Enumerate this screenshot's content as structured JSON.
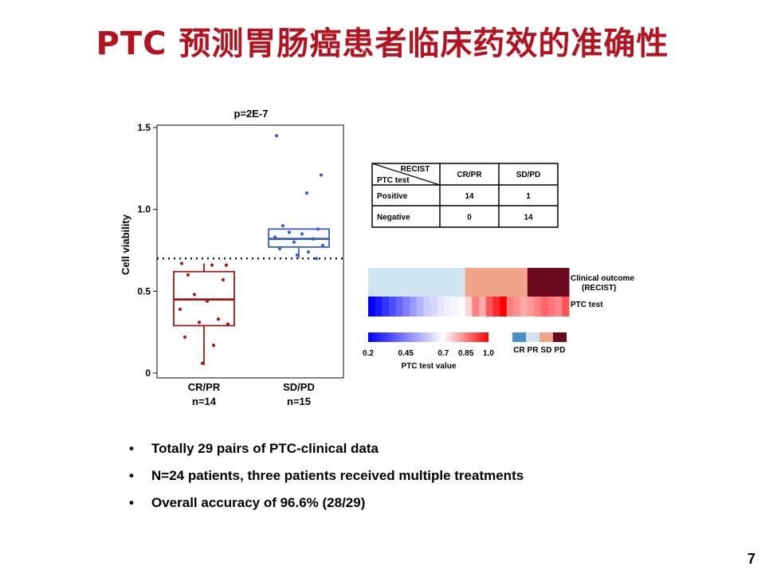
{
  "title": "PTC 预测胃肠癌患者临床药效的准确性",
  "page_number": "7",
  "bullets": [
    "Totally  29 pairs of PTC-clinical  data",
    "N=24 patients,  three patients received multiple treatments",
    "Overall accuracy of 96.6% (28/29)"
  ],
  "chart_data": [
    {
      "type": "scatter",
      "subtype": "box-strip",
      "title": "p=2E-7",
      "ylabel": "Cell viability",
      "ylim": [
        0,
        1.5
      ],
      "yticks": [
        0,
        0.5,
        1.0,
        1.5
      ],
      "ytick_labels": [
        "0",
        "0.5",
        "1.0",
        "1.5"
      ],
      "threshold": 0.7,
      "threshold_style": "dotted",
      "groups": [
        {
          "label": "CR/PR",
          "n_label": "n=14",
          "color": "#a01919",
          "values": [
            0.67,
            0.66,
            0.66,
            0.6,
            0.57,
            0.48,
            0.44,
            0.39,
            0.33,
            0.31,
            0.3,
            0.22,
            0.17,
            0.06
          ],
          "box": {
            "q1": 0.29,
            "median": 0.45,
            "q3": 0.62,
            "whisker_low": 0.05,
            "whisker_high": 0.67
          }
        },
        {
          "label": "SD/PD",
          "n_label": "n=15",
          "color": "#3a5fbf",
          "values": [
            1.45,
            1.21,
            1.1,
            0.9,
            0.88,
            0.86,
            0.85,
            0.83,
            0.82,
            0.8,
            0.78,
            0.76,
            0.74,
            0.72,
            0.7
          ],
          "box": {
            "q1": 0.77,
            "median": 0.82,
            "q3": 0.88,
            "whisker_low": 0.7,
            "whisker_high": 0.88
          }
        }
      ]
    },
    {
      "type": "table",
      "corner_top": "RECIST",
      "corner_bottom": "PTC test",
      "columns": [
        "CR/PR",
        "SD/PD"
      ],
      "rows": [
        {
          "label": "Positive",
          "values": [
            "14",
            "1"
          ]
        },
        {
          "label": "Negative",
          "values": [
            "0",
            "14"
          ]
        }
      ]
    },
    {
      "type": "heatmap",
      "row_labels": [
        "Clinical outcome\n(RECIST)",
        "PTC test"
      ],
      "clinical_outcome": [
        {
          "category": "PR",
          "count": 14,
          "color": "#cfe6f2"
        },
        {
          "category": "SD",
          "count": 9,
          "color": "#f2a488"
        },
        {
          "category": "PD",
          "count": 6,
          "color": "#6b0a1e"
        }
      ],
      "ptc_values": [
        0.2,
        0.25,
        0.3,
        0.35,
        0.4,
        0.45,
        0.5,
        0.55,
        0.6,
        0.62,
        0.65,
        0.67,
        0.68,
        0.7,
        0.75,
        0.85,
        0.8,
        0.9,
        0.95,
        1.0,
        0.85,
        0.83,
        0.8,
        0.82,
        0.85,
        0.88,
        0.86,
        0.84,
        0.9
      ],
      "colorscale": {
        "label": "PTC test value",
        "ticks": [
          0.2,
          0.45,
          0.7,
          0.85,
          1.0
        ],
        "tick_labels": [
          "0.2",
          "0.45",
          "0.7",
          "0.85",
          "1.0"
        ],
        "low_color": "#0000ff",
        "mid_value": 0.7,
        "mid_color": "#ffffff",
        "high_color": "#ff0000"
      },
      "category_legend": [
        {
          "label": "CR",
          "color": "#4a90c8"
        },
        {
          "label": "PR",
          "color": "#cfe6f2"
        },
        {
          "label": "SD",
          "color": "#f2a488"
        },
        {
          "label": "PD",
          "color": "#6b0a1e"
        }
      ]
    }
  ]
}
